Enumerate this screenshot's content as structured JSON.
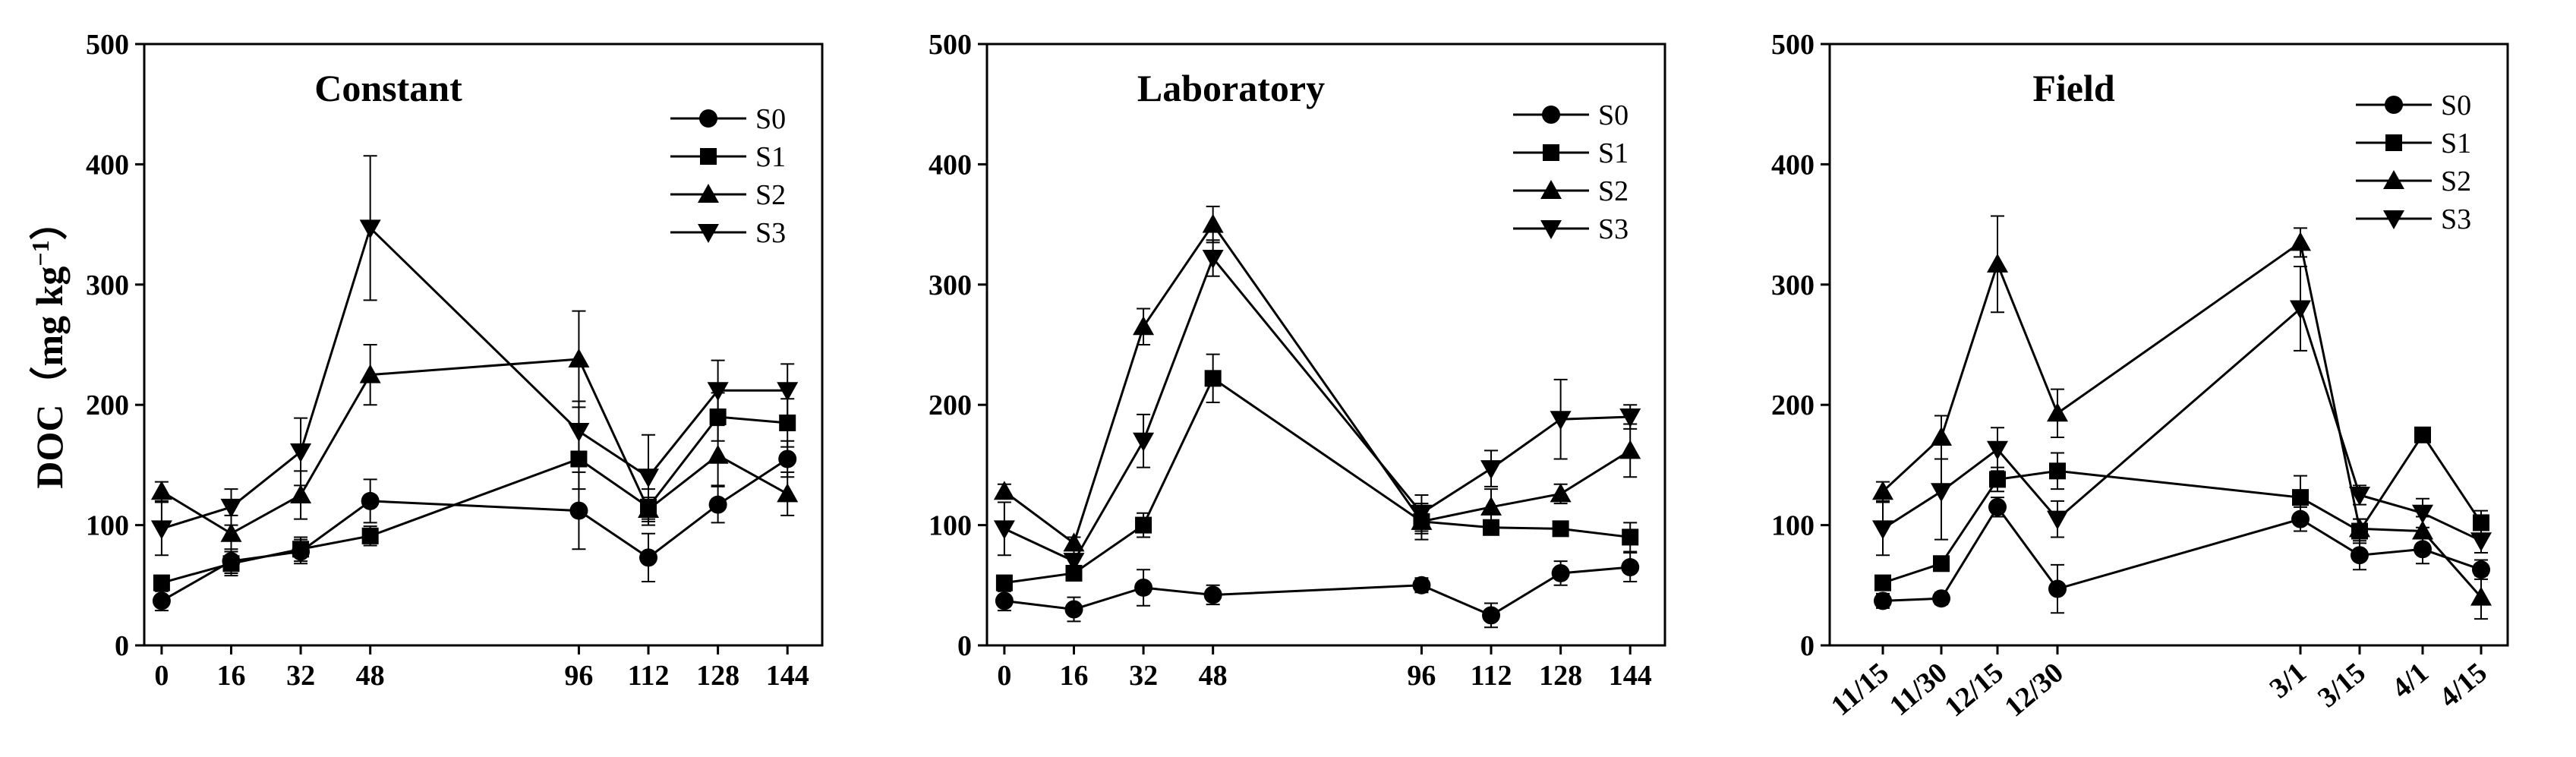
{
  "ylabel": {
    "main": "DOC（mg kg",
    "sup": "−1",
    "close": "）"
  },
  "chart_data": [
    {
      "type": "line",
      "title": "Constant",
      "ylim": [
        0,
        500
      ],
      "yticks": [
        0,
        100,
        200,
        300,
        400,
        500
      ],
      "x": [
        0,
        16,
        32,
        48,
        96,
        112,
        128,
        144
      ],
      "xtick_labels": [
        "0",
        "16",
        "32",
        "48",
        "96",
        "112",
        "128",
        "144"
      ],
      "xrange": [
        -4,
        152
      ],
      "rotate_xticks": false,
      "legend_position": "top-right",
      "series": [
        {
          "name": "S0",
          "marker": "circle",
          "values": [
            37,
            70,
            78,
            120,
            112,
            73,
            117,
            155
          ],
          "errors": [
            8,
            10,
            10,
            18,
            32,
            20,
            15,
            15
          ]
        },
        {
          "name": "S1",
          "marker": "square",
          "values": [
            52,
            68,
            80,
            91,
            155,
            115,
            190,
            185
          ],
          "errors": [
            5,
            10,
            10,
            8,
            25,
            15,
            20,
            20
          ]
        },
        {
          "name": "S2",
          "marker": "triangle-up",
          "values": [
            128,
            93,
            125,
            225,
            238,
            113,
            158,
            126
          ],
          "errors": [
            8,
            15,
            20,
            25,
            40,
            10,
            25,
            18
          ]
        },
        {
          "name": "S3",
          "marker": "triangle-down",
          "values": [
            97,
            115,
            161,
            347,
            178,
            140,
            212,
            212
          ],
          "errors": [
            22,
            15,
            28,
            60,
            25,
            35,
            25,
            22
          ]
        }
      ]
    },
    {
      "type": "line",
      "title": "Laboratory",
      "ylim": [
        0,
        500
      ],
      "yticks": [
        0,
        100,
        200,
        300,
        400,
        500
      ],
      "x": [
        0,
        16,
        32,
        48,
        96,
        112,
        128,
        144
      ],
      "xtick_labels": [
        "0",
        "16",
        "32",
        "48",
        "96",
        "112",
        "128",
        "144"
      ],
      "xrange": [
        -4,
        152
      ],
      "rotate_xticks": false,
      "legend_position": "top-right",
      "series": [
        {
          "name": "S0",
          "marker": "circle",
          "values": [
            37,
            30,
            48,
            42,
            50,
            25,
            60,
            65
          ],
          "errors": [
            8,
            10,
            15,
            8,
            6,
            10,
            10,
            12
          ]
        },
        {
          "name": "S1",
          "marker": "square",
          "values": [
            52,
            60,
            100,
            222,
            103,
            98,
            97,
            90
          ],
          "errors": [
            5,
            6,
            10,
            20,
            10,
            5,
            5,
            12
          ]
        },
        {
          "name": "S2",
          "marker": "triangle-up",
          "values": [
            128,
            85,
            265,
            350,
            103,
            115,
            126,
            162
          ],
          "errors": [
            6,
            5,
            15,
            15,
            15,
            15,
            8,
            22
          ]
        },
        {
          "name": "S3",
          "marker": "triangle-down",
          "values": [
            97,
            70,
            170,
            322,
            110,
            147,
            188,
            190
          ],
          "errors": [
            22,
            10,
            22,
            15,
            15,
            15,
            33,
            10
          ]
        }
      ]
    },
    {
      "type": "line",
      "title": "Field",
      "ylim": [
        0,
        500
      ],
      "yticks": [
        0,
        100,
        200,
        300,
        400,
        500
      ],
      "x": [
        "11/15",
        "11/30",
        "12/15",
        "12/30",
        "3/1",
        "3/15",
        "4/1",
        "4/15"
      ],
      "xtick_labels": [
        "11/15",
        "11/30",
        "12/15",
        "12/30",
        "3/1",
        "3/15",
        "4/1",
        "4/15"
      ],
      "rotate_xticks": true,
      "legend_position": "top-right",
      "series": [
        {
          "name": "S0",
          "marker": "circle",
          "values": [
            37,
            39,
            115,
            47,
            105,
            75,
            80,
            63
          ],
          "errors": [
            6,
            5,
            8,
            20,
            10,
            12,
            12,
            8
          ]
        },
        {
          "name": "S1",
          "marker": "square",
          "values": [
            52,
            68,
            138,
            145,
            123,
            95,
            175,
            102
          ],
          "errors": [
            5,
            5,
            10,
            15,
            18,
            10,
            5,
            10
          ]
        },
        {
          "name": "S2",
          "marker": "triangle-up",
          "values": [
            128,
            173,
            317,
            193,
            335,
            97,
            95,
            40
          ],
          "errors": [
            8,
            18,
            40,
            20,
            12,
            8,
            12,
            18
          ]
        },
        {
          "name": "S3",
          "marker": "triangle-down",
          "values": [
            97,
            128,
            163,
            105,
            280,
            125,
            110,
            87
          ],
          "errors": [
            22,
            40,
            18,
            15,
            35,
            8,
            12,
            10
          ]
        }
      ]
    }
  ]
}
